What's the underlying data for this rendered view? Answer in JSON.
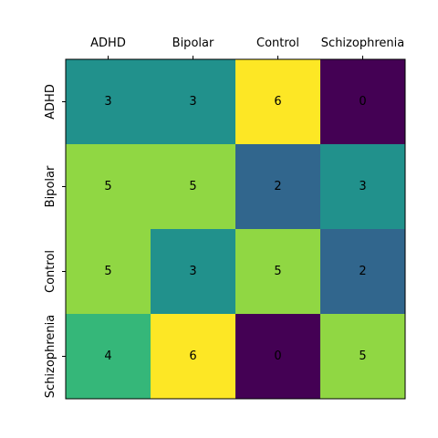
{
  "chart_data": {
    "type": "heatmap",
    "title": "",
    "xlabel": "",
    "ylabel": "",
    "x_categories": [
      "ADHD",
      "Bipolar",
      "Control",
      "Schizophrenia"
    ],
    "y_categories": [
      "ADHD",
      "Bipolar",
      "Control",
      "Schizophrenia"
    ],
    "values": [
      [
        3,
        3,
        6,
        0
      ],
      [
        5,
        5,
        2,
        3
      ],
      [
        5,
        3,
        5,
        2
      ],
      [
        4,
        6,
        0,
        5
      ]
    ],
    "value_range": [
      0,
      6
    ],
    "colormap": "viridis",
    "grid": false,
    "x_tick_position": "top"
  }
}
